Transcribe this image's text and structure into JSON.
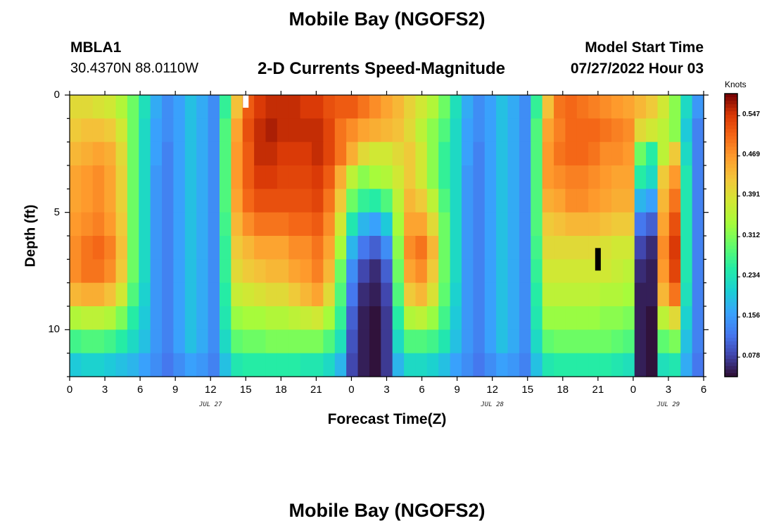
{
  "titles": {
    "top": "Mobile Bay (NGOFS2)",
    "bottom": "Mobile Bay (NGOFS2)"
  },
  "station": {
    "id": "MBLA1",
    "coords": "30.4370N  88.0110W"
  },
  "model": {
    "label": "Model Start Time",
    "start": "07/27/2022 Hour 03"
  },
  "chart_data": {
    "type": "heatmap",
    "title": "2-D Currents Speed-Magnitude",
    "xlabel": "Forecast Time(Z)",
    "ylabel": "Depth (ft)",
    "colorbar_label": "Knots",
    "x_tick_labels": [
      "0",
      "3",
      "6",
      "9",
      "12",
      "15",
      "18",
      "21",
      "0",
      "3",
      "6",
      "9",
      "12",
      "15",
      "18",
      "21",
      "0",
      "3",
      "6"
    ],
    "x_date_labels": [
      {
        "text": "JUL 27",
        "hour": 12
      },
      {
        "text": "JUL 28",
        "hour": 36
      },
      {
        "text": "JUL 29",
        "hour": 51
      }
    ],
    "x_range_hours": [
      0,
      54
    ],
    "y_ticks": [
      0,
      5,
      10
    ],
    "y_range_ft": [
      0,
      12
    ],
    "color_range": [
      0.04,
      0.59
    ],
    "colorbar_ticks": [
      "0.547",
      "0.469",
      "0.391",
      "0.312",
      "0.234",
      "0.156",
      "0.078"
    ],
    "colorbar_tick_values": [
      0.547,
      0.469,
      0.391,
      0.312,
      0.234,
      0.156,
      0.078
    ],
    "layer_depths_ft": [
      0.5,
      1.5,
      2.5,
      3.5,
      4.5,
      5.5,
      6.5,
      7.5,
      8.5,
      9.5,
      10.5,
      11.5
    ],
    "speed_grid_note": "12 depth layers x 55 hourly columns (hours 0-54), surface to bottom",
    "speeds": [
      [
        0.4,
        0.4,
        0.39,
        0.38,
        0.35,
        0.3,
        0.23,
        0.17,
        0.14,
        0.16,
        0.19,
        0.17,
        0.14,
        0.26,
        0.43,
        0.52,
        0.55,
        0.56,
        0.56,
        0.56,
        0.55,
        0.55,
        0.53,
        0.52,
        0.52,
        0.5,
        0.48,
        0.46,
        0.44,
        0.41,
        0.38,
        0.35,
        0.3,
        0.23,
        0.17,
        0.14,
        0.16,
        0.19,
        0.17,
        0.14,
        0.26,
        0.43,
        0.5,
        0.51,
        0.5,
        0.49,
        0.48,
        0.47,
        0.46,
        0.44,
        0.42,
        0.38,
        0.32,
        0.22,
        0.15
      ],
      [
        0.42,
        0.43,
        0.43,
        0.42,
        0.38,
        0.3,
        0.22,
        0.16,
        0.14,
        0.16,
        0.19,
        0.17,
        0.14,
        0.28,
        0.46,
        0.53,
        0.56,
        0.57,
        0.56,
        0.56,
        0.56,
        0.56,
        0.54,
        0.5,
        0.48,
        0.46,
        0.45,
        0.44,
        0.43,
        0.4,
        0.36,
        0.32,
        0.28,
        0.22,
        0.16,
        0.14,
        0.16,
        0.19,
        0.17,
        0.14,
        0.28,
        0.46,
        0.49,
        0.51,
        0.51,
        0.51,
        0.5,
        0.49,
        0.48,
        0.4,
        0.38,
        0.36,
        0.32,
        0.2,
        0.13
      ],
      [
        0.44,
        0.45,
        0.46,
        0.45,
        0.4,
        0.3,
        0.22,
        0.16,
        0.13,
        0.16,
        0.19,
        0.17,
        0.14,
        0.28,
        0.47,
        0.52,
        0.56,
        0.56,
        0.55,
        0.55,
        0.55,
        0.56,
        0.54,
        0.5,
        0.45,
        0.4,
        0.38,
        0.38,
        0.4,
        0.42,
        0.38,
        0.32,
        0.26,
        0.22,
        0.16,
        0.13,
        0.16,
        0.19,
        0.17,
        0.14,
        0.28,
        0.47,
        0.5,
        0.51,
        0.51,
        0.5,
        0.48,
        0.48,
        0.47,
        0.3,
        0.25,
        0.36,
        0.42,
        0.22,
        0.13
      ],
      [
        0.46,
        0.47,
        0.48,
        0.46,
        0.41,
        0.3,
        0.22,
        0.15,
        0.13,
        0.16,
        0.19,
        0.17,
        0.14,
        0.28,
        0.47,
        0.52,
        0.55,
        0.55,
        0.54,
        0.54,
        0.54,
        0.55,
        0.52,
        0.45,
        0.36,
        0.32,
        0.34,
        0.35,
        0.38,
        0.42,
        0.38,
        0.32,
        0.26,
        0.22,
        0.15,
        0.13,
        0.16,
        0.19,
        0.17,
        0.14,
        0.28,
        0.47,
        0.48,
        0.49,
        0.49,
        0.48,
        0.47,
        0.46,
        0.46,
        0.25,
        0.22,
        0.42,
        0.47,
        0.24,
        0.13
      ],
      [
        0.46,
        0.47,
        0.48,
        0.46,
        0.41,
        0.3,
        0.22,
        0.15,
        0.13,
        0.16,
        0.19,
        0.17,
        0.14,
        0.28,
        0.46,
        0.51,
        0.53,
        0.53,
        0.53,
        0.53,
        0.53,
        0.54,
        0.5,
        0.42,
        0.3,
        0.26,
        0.25,
        0.28,
        0.36,
        0.44,
        0.42,
        0.36,
        0.28,
        0.22,
        0.15,
        0.13,
        0.16,
        0.19,
        0.17,
        0.14,
        0.28,
        0.45,
        0.46,
        0.48,
        0.48,
        0.47,
        0.46,
        0.45,
        0.45,
        0.18,
        0.16,
        0.44,
        0.5,
        0.24,
        0.13
      ],
      [
        0.47,
        0.48,
        0.49,
        0.47,
        0.42,
        0.3,
        0.22,
        0.15,
        0.13,
        0.16,
        0.19,
        0.17,
        0.14,
        0.27,
        0.44,
        0.48,
        0.5,
        0.5,
        0.5,
        0.51,
        0.51,
        0.52,
        0.48,
        0.38,
        0.24,
        0.18,
        0.16,
        0.2,
        0.34,
        0.46,
        0.46,
        0.4,
        0.3,
        0.22,
        0.15,
        0.13,
        0.16,
        0.19,
        0.17,
        0.14,
        0.28,
        0.42,
        0.43,
        0.44,
        0.44,
        0.44,
        0.43,
        0.42,
        0.42,
        0.12,
        0.1,
        0.46,
        0.53,
        0.24,
        0.13
      ],
      [
        0.48,
        0.5,
        0.51,
        0.49,
        0.43,
        0.3,
        0.22,
        0.15,
        0.13,
        0.16,
        0.19,
        0.17,
        0.14,
        0.26,
        0.42,
        0.44,
        0.46,
        0.46,
        0.46,
        0.48,
        0.48,
        0.5,
        0.46,
        0.34,
        0.18,
        0.12,
        0.1,
        0.14,
        0.32,
        0.48,
        0.5,
        0.44,
        0.3,
        0.22,
        0.15,
        0.13,
        0.16,
        0.19,
        0.17,
        0.14,
        0.27,
        0.4,
        0.4,
        0.4,
        0.4,
        0.4,
        0.39,
        0.38,
        0.38,
        0.08,
        0.06,
        0.48,
        0.55,
        0.24,
        0.13
      ],
      [
        0.48,
        0.5,
        0.5,
        0.48,
        0.42,
        0.3,
        0.22,
        0.15,
        0.13,
        0.16,
        0.19,
        0.17,
        0.14,
        0.26,
        0.4,
        0.42,
        0.43,
        0.44,
        0.44,
        0.46,
        0.47,
        0.49,
        0.44,
        0.3,
        0.14,
        0.08,
        0.06,
        0.1,
        0.3,
        0.46,
        0.48,
        0.42,
        0.3,
        0.22,
        0.15,
        0.13,
        0.16,
        0.19,
        0.17,
        0.14,
        0.26,
        0.38,
        0.38,
        0.38,
        0.38,
        0.38,
        0.38,
        0.37,
        0.36,
        0.06,
        0.05,
        0.47,
        0.54,
        0.24,
        0.13
      ],
      [
        0.44,
        0.45,
        0.45,
        0.43,
        0.38,
        0.28,
        0.21,
        0.15,
        0.13,
        0.16,
        0.19,
        0.17,
        0.14,
        0.25,
        0.37,
        0.38,
        0.39,
        0.4,
        0.4,
        0.42,
        0.44,
        0.46,
        0.4,
        0.28,
        0.12,
        0.06,
        0.05,
        0.08,
        0.28,
        0.42,
        0.44,
        0.39,
        0.29,
        0.21,
        0.15,
        0.13,
        0.16,
        0.19,
        0.17,
        0.14,
        0.25,
        0.36,
        0.36,
        0.36,
        0.36,
        0.36,
        0.35,
        0.35,
        0.34,
        0.05,
        0.05,
        0.44,
        0.5,
        0.23,
        0.13
      ],
      [
        0.35,
        0.36,
        0.36,
        0.35,
        0.31,
        0.25,
        0.2,
        0.15,
        0.13,
        0.16,
        0.19,
        0.17,
        0.14,
        0.24,
        0.33,
        0.34,
        0.34,
        0.35,
        0.35,
        0.36,
        0.37,
        0.38,
        0.34,
        0.26,
        0.1,
        0.05,
        0.04,
        0.07,
        0.25,
        0.35,
        0.36,
        0.33,
        0.27,
        0.2,
        0.15,
        0.13,
        0.16,
        0.19,
        0.17,
        0.14,
        0.24,
        0.33,
        0.33,
        0.33,
        0.33,
        0.33,
        0.32,
        0.32,
        0.31,
        0.05,
        0.04,
        0.36,
        0.4,
        0.21,
        0.13
      ],
      [
        0.27,
        0.28,
        0.28,
        0.27,
        0.25,
        0.22,
        0.19,
        0.15,
        0.13,
        0.16,
        0.19,
        0.17,
        0.14,
        0.22,
        0.29,
        0.3,
        0.3,
        0.31,
        0.31,
        0.31,
        0.31,
        0.31,
        0.28,
        0.23,
        0.09,
        0.05,
        0.04,
        0.07,
        0.22,
        0.28,
        0.28,
        0.27,
        0.24,
        0.19,
        0.15,
        0.13,
        0.16,
        0.19,
        0.17,
        0.14,
        0.22,
        0.29,
        0.3,
        0.3,
        0.3,
        0.3,
        0.3,
        0.29,
        0.28,
        0.05,
        0.04,
        0.29,
        0.31,
        0.19,
        0.13
      ],
      [
        0.2,
        0.21,
        0.21,
        0.2,
        0.19,
        0.18,
        0.16,
        0.14,
        0.12,
        0.14,
        0.16,
        0.15,
        0.13,
        0.19,
        0.24,
        0.25,
        0.25,
        0.25,
        0.25,
        0.25,
        0.24,
        0.24,
        0.22,
        0.18,
        0.08,
        0.05,
        0.04,
        0.07,
        0.18,
        0.22,
        0.22,
        0.21,
        0.19,
        0.16,
        0.14,
        0.12,
        0.14,
        0.16,
        0.15,
        0.13,
        0.19,
        0.24,
        0.25,
        0.25,
        0.25,
        0.25,
        0.25,
        0.24,
        0.23,
        0.05,
        0.04,
        0.23,
        0.24,
        0.17,
        0.12
      ]
    ],
    "missing_cells": [
      {
        "hour": 15,
        "depth_ft": 0.5,
        "color": "#ffffff"
      },
      {
        "hour": 45,
        "depth_ft": 7.0,
        "color": "#000000"
      }
    ]
  }
}
